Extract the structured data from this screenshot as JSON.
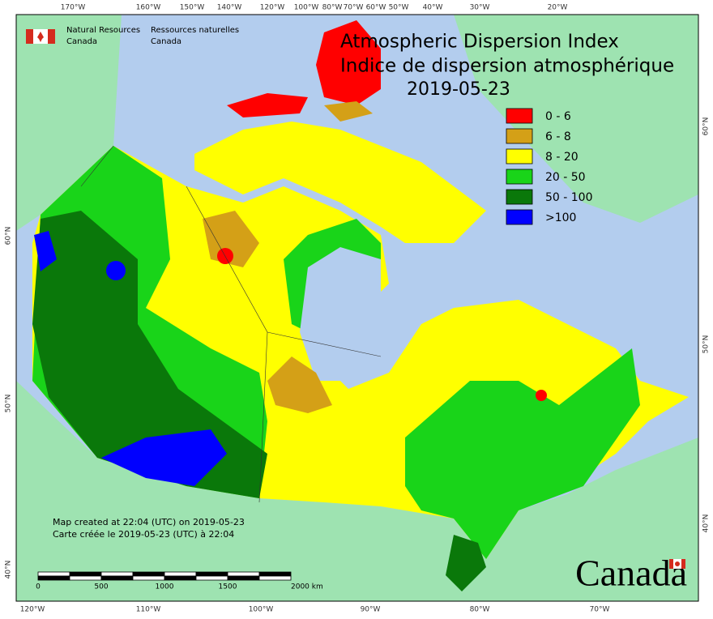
{
  "header": {
    "agency_en": [
      "Natural Resources",
      "Canada"
    ],
    "agency_fr": [
      "Ressources naturelles",
      "Canada"
    ]
  },
  "title": {
    "line1": "Atmospheric Dispersion Index",
    "line2": "Indice de dispersion atmosphérique",
    "date": "2019-05-23"
  },
  "legend": [
    {
      "label": "0 - 6",
      "color": "#ff0000"
    },
    {
      "label": "6 - 8",
      "color": "#d4a017"
    },
    {
      "label": "8 - 20",
      "color": "#ffff00"
    },
    {
      "label": "20 - 50",
      "color": "#19d419"
    },
    {
      "label": "50 - 100",
      "color": "#0a780a"
    },
    {
      "label": ">100",
      "color": "#0000ff"
    }
  ],
  "graticule": {
    "top": [
      "170°W",
      "160°W",
      "150°W",
      "140°W",
      "120°W",
      "100°W",
      "80°W",
      "70°W",
      "60°W",
      "50°W",
      "40°W",
      "30°W",
      "20°W"
    ],
    "bottom": [
      "120°W",
      "110°W",
      "100°W",
      "90°W",
      "80°W",
      "70°W"
    ],
    "left": [
      "60°N",
      "50°N",
      "40°N"
    ],
    "right": [
      "60°N",
      "50°N",
      "40°N"
    ]
  },
  "footer": {
    "line1": "Map created at 22:04 (UTC) on 2019-05-23",
    "line2": "Carte créée le 2019-05-23 (UTC) à 22:04"
  },
  "scale_bar": {
    "labels": [
      "0",
      "500",
      "1000",
      "1500",
      "2000  km"
    ]
  },
  "wordmark": "Canada"
}
